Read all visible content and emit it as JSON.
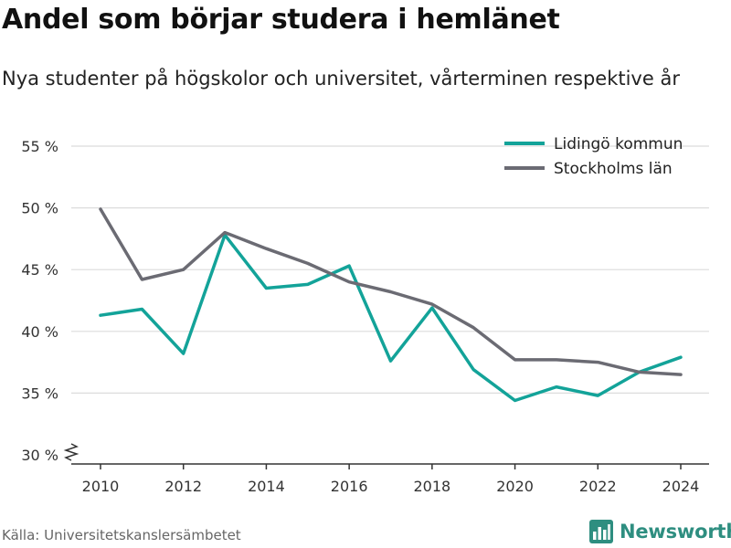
{
  "header": {
    "title": "Andel som börjar studera i hemlänet",
    "subtitle": "Nya studenter på högskolor och universitet, vårterminen respektive år"
  },
  "footer": {
    "source": "Källa: Universitetskanslersämbetet",
    "brand": "Newsworthy",
    "brand_icon": "newsworthy-logo-icon"
  },
  "chart_data": {
    "type": "line",
    "x": [
      2010,
      2011,
      2012,
      2013,
      2014,
      2015,
      2016,
      2017,
      2018,
      2019,
      2020,
      2021,
      2022,
      2023,
      2024
    ],
    "series": [
      {
        "name": "Lidingö kommun",
        "color": "#13a399",
        "values": [
          41.3,
          41.8,
          38.2,
          47.8,
          43.5,
          43.8,
          45.3,
          37.6,
          41.9,
          36.9,
          34.4,
          35.5,
          34.8,
          36.7,
          37.9
        ]
      },
      {
        "name": "Stockholms län",
        "color": "#6b6b73",
        "values": [
          49.9,
          44.2,
          45.0,
          48.0,
          46.7,
          45.5,
          44.0,
          43.2,
          42.2,
          40.3,
          37.7,
          37.7,
          37.5,
          36.7,
          36.5
        ]
      }
    ],
    "xticks": [
      2010,
      2012,
      2014,
      2016,
      2018,
      2020,
      2022,
      2024
    ],
    "yticks": [
      30,
      35,
      40,
      45,
      50,
      55
    ],
    "ytick_labels": [
      "30 %",
      "35 %",
      "40 %",
      "45 %",
      "50 %",
      "55 %"
    ],
    "ylim": [
      30,
      55
    ],
    "xlim": [
      2010,
      2024
    ],
    "grid": "horizontal",
    "legend_position": "top-right",
    "axis_break": true
  }
}
